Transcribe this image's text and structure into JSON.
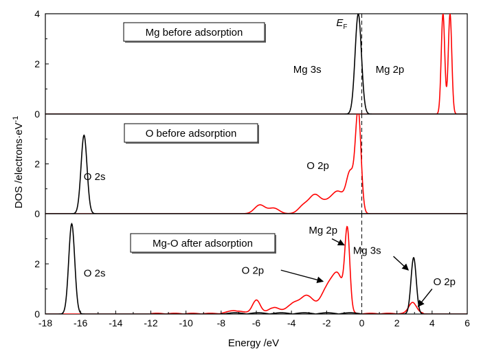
{
  "chart_data": {
    "type": "line",
    "xlabel": "Energy /eV",
    "ylabel": "DOS /electrons·eV",
    "ylabel_superscript": "-1",
    "xlim": [
      -18,
      6
    ],
    "xticks": [
      "-18",
      "-16",
      "-14",
      "-12",
      "-10",
      "-8",
      "-6",
      "-4",
      "-2",
      "0",
      "2",
      "4",
      "6"
    ],
    "fermi_label": "E",
    "fermi_subscript": "F",
    "fermi_energy": 0,
    "colors": {
      "s": "#000000",
      "p": "#ff0000"
    },
    "panels": [
      {
        "title": "Mg before adsorption",
        "ylim": [
          0,
          4
        ],
        "yticks": [
          "0",
          "2",
          "4"
        ],
        "peaks": [
          {
            "orbital": "s",
            "label": "Mg 3s",
            "center": -0.2,
            "height": 4.0,
            "width": 0.18
          },
          {
            "orbital": "p",
            "label": "Mg 2p",
            "center": 4.62,
            "height": 4.0,
            "width": 0.1
          },
          {
            "orbital": "p",
            "label": "Mg 2p",
            "center": 5.02,
            "height": 4.0,
            "width": 0.1
          }
        ],
        "annotations": [
          {
            "text": "Mg 3s",
            "x": -3.1,
            "y": 1.65
          },
          {
            "text": "Mg 2p",
            "x": 1.6,
            "y": 1.65
          }
        ]
      },
      {
        "title": "O before adsorption",
        "ylim": [
          0,
          4
        ],
        "yticks": [
          "0",
          "2"
        ],
        "peaks": [
          {
            "orbital": "s",
            "label": "O 2s",
            "center": -15.8,
            "height": 3.15,
            "width": 0.17
          },
          {
            "orbital": "p",
            "label": "O 2p",
            "center": -0.2,
            "height": 4.0,
            "width": 0.16
          },
          {
            "orbital": "p",
            "label": "",
            "center": -0.65,
            "height": 1.55,
            "width": 0.22
          },
          {
            "orbital": "p",
            "label": "",
            "center": -1.3,
            "height": 0.75,
            "width": 0.35
          },
          {
            "orbital": "p",
            "label": "",
            "center": -2.7,
            "height": 0.6,
            "width": 0.3
          },
          {
            "orbital": "p",
            "label": "",
            "center": -3.3,
            "height": 0.32,
            "width": 0.3
          },
          {
            "orbital": "p",
            "label": "",
            "center": -5.8,
            "height": 0.35,
            "width": 0.3
          },
          {
            "orbital": "p",
            "label": "",
            "center": -5.0,
            "height": 0.22,
            "width": 0.3
          },
          {
            "orbital": "p",
            "label": "",
            "center": -2.0,
            "height": 0.45,
            "width": 0.45
          }
        ],
        "annotations": [
          {
            "text": "O 2s",
            "x": -15.2,
            "y": 1.35
          },
          {
            "text": "O 2p",
            "x": -2.5,
            "y": 1.8
          }
        ]
      },
      {
        "title": "Mg-O after adsorption",
        "ylim": [
          0,
          4
        ],
        "yticks": [
          "0",
          "2"
        ],
        "peaks": [
          {
            "orbital": "s",
            "label": "O 2s",
            "center": -16.5,
            "height": 3.6,
            "width": 0.17
          },
          {
            "orbital": "s",
            "label": "Mg 3s",
            "center": 2.95,
            "height": 2.25,
            "width": 0.15
          },
          {
            "orbital": "p",
            "label": "Mg 2p",
            "center": -0.82,
            "height": 3.1,
            "width": 0.14
          },
          {
            "orbital": "p",
            "label": "O 2p",
            "center": -1.3,
            "height": 1.2,
            "width": 0.3
          },
          {
            "orbital": "p",
            "label": "",
            "center": -1.9,
            "height": 1.1,
            "width": 0.4
          },
          {
            "orbital": "p",
            "label": "",
            "center": -3.1,
            "height": 0.7,
            "width": 0.35
          },
          {
            "orbital": "p",
            "label": "",
            "center": -3.9,
            "height": 0.4,
            "width": 0.35
          },
          {
            "orbital": "p",
            "label": "",
            "center": -6.0,
            "height": 0.55,
            "width": 0.22
          },
          {
            "orbital": "p",
            "label": "",
            "center": -5.0,
            "height": 0.25,
            "width": 0.3
          },
          {
            "orbital": "p",
            "label": "",
            "center": -7.2,
            "height": 0.12,
            "width": 0.4
          },
          {
            "orbital": "p",
            "label": "O 2p",
            "center": 2.9,
            "height": 0.45,
            "width": 0.22
          }
        ],
        "annotations": [
          {
            "text": "O 2s",
            "x": -15.2,
            "y": 1.5
          },
          {
            "text": "Mg 2p",
            "x": -2.2,
            "y": 3.2
          },
          {
            "text": "O 2p",
            "x": -6.2,
            "y": 1.6
          },
          {
            "text": "Mg 3s",
            "x": 0.3,
            "y": 2.4
          },
          {
            "text": "O 2p",
            "x": 4.7,
            "y": 1.15
          }
        ]
      }
    ]
  }
}
